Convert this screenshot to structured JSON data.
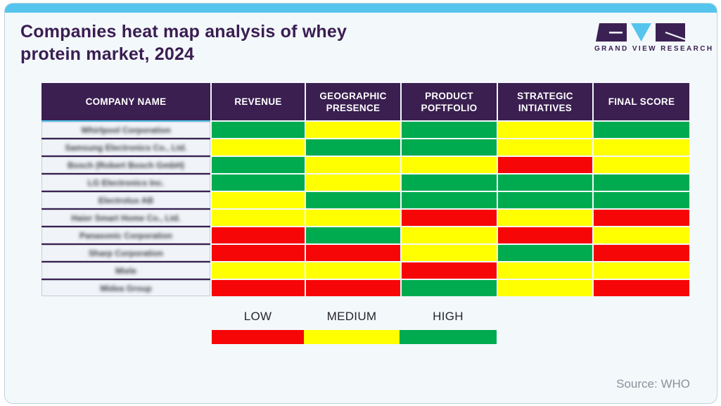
{
  "page": {
    "title_line1": "Companies heat map analysis of whey",
    "title_line2": "protein market, 2024",
    "source": "Source: WHO"
  },
  "logo": {
    "text": "GRAND VIEW RESEARCH",
    "purple": "#3b2153",
    "blue": "#56c5ee"
  },
  "heatmap": {
    "columns": [
      "COMPANY NAME",
      "REVENUE",
      "GEOGRAPHIC PRESENCE",
      "PRODUCT POFTFOLIO",
      "STRATEGIC INTIATIVES",
      "FINAL SCORE"
    ],
    "score_colors": {
      "low": "#f60606",
      "medium": "#ffff00",
      "high": "#00ab4f"
    },
    "rows": [
      {
        "company": "Whirlpool Corporation",
        "scores": [
          "high",
          "medium",
          "high",
          "medium",
          "high"
        ]
      },
      {
        "company": "Samsung Electronics Co., Ltd.",
        "scores": [
          "medium",
          "high",
          "high",
          "medium",
          "medium"
        ]
      },
      {
        "company": "Bosch (Robert Bosch GmbH)",
        "scores": [
          "high",
          "medium",
          "medium",
          "low",
          "medium"
        ]
      },
      {
        "company": "LG Electronics Inc.",
        "scores": [
          "high",
          "medium",
          "high",
          "high",
          "high"
        ]
      },
      {
        "company": "Electrolux AB",
        "scores": [
          "medium",
          "high",
          "high",
          "high",
          "high"
        ]
      },
      {
        "company": "Haier Smart Home Co., Ltd.",
        "scores": [
          "medium",
          "medium",
          "low",
          "medium",
          "low"
        ]
      },
      {
        "company": "Panasonic Corporation",
        "scores": [
          "low",
          "high",
          "medium",
          "low",
          "medium"
        ]
      },
      {
        "company": "Sharp Corporation",
        "scores": [
          "low",
          "low",
          "medium",
          "high",
          "low"
        ]
      },
      {
        "company": "Miele",
        "scores": [
          "medium",
          "medium",
          "low",
          "medium",
          "medium"
        ]
      },
      {
        "company": "Midea Group",
        "scores": [
          "low",
          "low",
          "high",
          "medium",
          "low"
        ]
      }
    ]
  },
  "legend": {
    "items": [
      {
        "label": "LOW",
        "color": "#f60606"
      },
      {
        "label": "MEDIUM",
        "color": "#ffff00"
      },
      {
        "label": "HIGH",
        "color": "#00ab4f"
      }
    ]
  },
  "chart_data": {
    "type": "heatmap",
    "title": "Companies heat map analysis of whey protein market, 2024",
    "row_header": "COMPANY NAME",
    "columns": [
      "REVENUE",
      "GEOGRAPHIC PRESENCE",
      "PRODUCT POFTFOLIO",
      "STRATEGIC INTIATIVES",
      "FINAL SCORE"
    ],
    "rows": [
      "Whirlpool Corporation",
      "Samsung Electronics Co., Ltd.",
      "Bosch (Robert Bosch GmbH)",
      "LG Electronics Inc.",
      "Electrolux AB",
      "Haier Smart Home Co., Ltd.",
      "Panasonic Corporation",
      "Sharp Corporation",
      "Miele",
      "Midea Group"
    ],
    "values": [
      [
        "HIGH",
        "MEDIUM",
        "HIGH",
        "MEDIUM",
        "HIGH"
      ],
      [
        "MEDIUM",
        "HIGH",
        "HIGH",
        "MEDIUM",
        "MEDIUM"
      ],
      [
        "HIGH",
        "MEDIUM",
        "MEDIUM",
        "LOW",
        "MEDIUM"
      ],
      [
        "HIGH",
        "MEDIUM",
        "HIGH",
        "HIGH",
        "HIGH"
      ],
      [
        "MEDIUM",
        "HIGH",
        "HIGH",
        "HIGH",
        "HIGH"
      ],
      [
        "MEDIUM",
        "MEDIUM",
        "LOW",
        "MEDIUM",
        "LOW"
      ],
      [
        "LOW",
        "HIGH",
        "MEDIUM",
        "LOW",
        "MEDIUM"
      ],
      [
        "LOW",
        "LOW",
        "MEDIUM",
        "HIGH",
        "LOW"
      ],
      [
        "MEDIUM",
        "MEDIUM",
        "LOW",
        "MEDIUM",
        "MEDIUM"
      ],
      [
        "LOW",
        "LOW",
        "HIGH",
        "MEDIUM",
        "LOW"
      ]
    ],
    "scale": {
      "LOW": "#f60606",
      "MEDIUM": "#ffff00",
      "HIGH": "#00ab4f"
    },
    "legend": [
      "LOW",
      "MEDIUM",
      "HIGH"
    ],
    "legend_position": "bottom",
    "source": "Source: WHO"
  }
}
